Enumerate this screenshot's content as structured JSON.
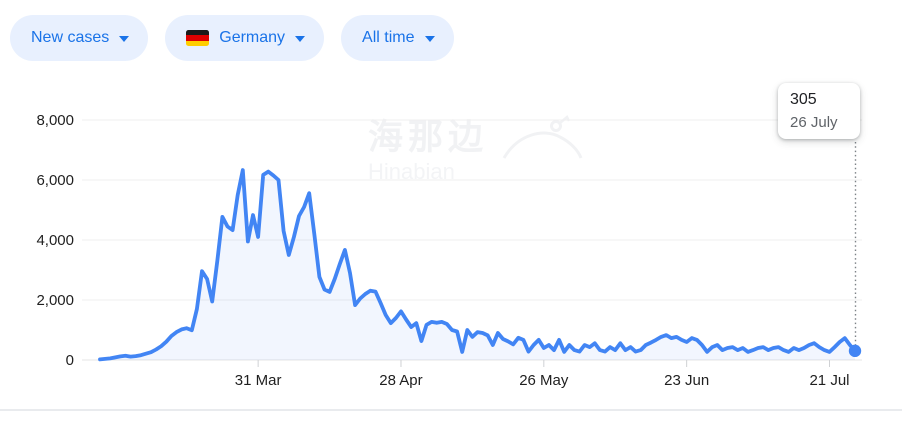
{
  "filters": {
    "metric": {
      "label": "New cases"
    },
    "region": {
      "label": "Germany",
      "flag": "germany-flag"
    },
    "range": {
      "label": "All time"
    }
  },
  "tooltip": {
    "value": "305",
    "date": "26 July"
  },
  "watermark": {
    "cjk": "海那边",
    "latin": "Hinabian"
  },
  "colors": {
    "chip_bg": "#e8f0fe",
    "chip_text": "#1a73e8",
    "line": "#4285f4",
    "area_fill": "rgba(66,133,244,0.07)",
    "grid": "#efefef",
    "axis_text": "#1f1f1f",
    "tooltip_value": "#202124",
    "tooltip_date": "#5f6368",
    "flag_black": "#1a1a1a",
    "flag_red": "#dd0000",
    "flag_gold": "#ffce00"
  },
  "chart_data": {
    "type": "line",
    "series_name": "New cases",
    "region": "Germany",
    "time_range": "All time",
    "x_interval": "daily",
    "start_date": "29 Feb",
    "end_date": "26 July",
    "ylim": [
      0,
      8000
    ],
    "grid": true,
    "y_ticks": [
      {
        "value": 0,
        "label": "0"
      },
      {
        "value": 2000,
        "label": "2,000"
      },
      {
        "value": 4000,
        "label": "4,000"
      },
      {
        "value": 6000,
        "label": "6,000"
      },
      {
        "value": 8000,
        "label": "8,000"
      }
    ],
    "x_ticks": [
      {
        "label": "31 Mar",
        "day_index": 31
      },
      {
        "label": "28 Apr",
        "day_index": 59
      },
      {
        "label": "26 May",
        "day_index": 87
      },
      {
        "label": "23 Jun",
        "day_index": 115
      },
      {
        "label": "21 Jul",
        "day_index": 143
      }
    ],
    "values": [
      20,
      35,
      55,
      85,
      120,
      140,
      115,
      130,
      160,
      210,
      260,
      350,
      460,
      610,
      800,
      930,
      1020,
      1060,
      990,
      1700,
      2960,
      2700,
      1950,
      3300,
      4770,
      4450,
      4330,
      5500,
      6330,
      3950,
      4830,
      4100,
      6170,
      6280,
      6150,
      6000,
      4300,
      3500,
      4100,
      4800,
      5100,
      5560,
      4200,
      2770,
      2350,
      2270,
      2700,
      3200,
      3670,
      2900,
      1830,
      2050,
      2200,
      2310,
      2280,
      1900,
      1500,
      1230,
      1400,
      1620,
      1350,
      1100,
      1230,
      630,
      1170,
      1270,
      1240,
      1270,
      1200,
      1000,
      950,
      270,
      1000,
      770,
      930,
      900,
      820,
      500,
      900,
      700,
      620,
      520,
      740,
      670,
      280,
      500,
      670,
      400,
      500,
      330,
      670,
      270,
      500,
      330,
      280,
      500,
      430,
      560,
      330,
      280,
      430,
      330,
      560,
      330,
      430,
      280,
      330,
      500,
      580,
      670,
      770,
      830,
      730,
      770,
      670,
      600,
      730,
      670,
      500,
      270,
      430,
      500,
      330,
      400,
      430,
      330,
      400,
      270,
      330,
      400,
      430,
      330,
      400,
      430,
      330,
      270,
      400,
      330,
      400,
      500,
      560,
      430,
      330,
      270,
      430,
      600,
      730,
      500,
      305
    ],
    "highlighted_point": {
      "day_index": 148,
      "value": 305,
      "date": "26 July"
    },
    "legend_position": "none",
    "title": "",
    "xlabel": "",
    "ylabel": ""
  }
}
